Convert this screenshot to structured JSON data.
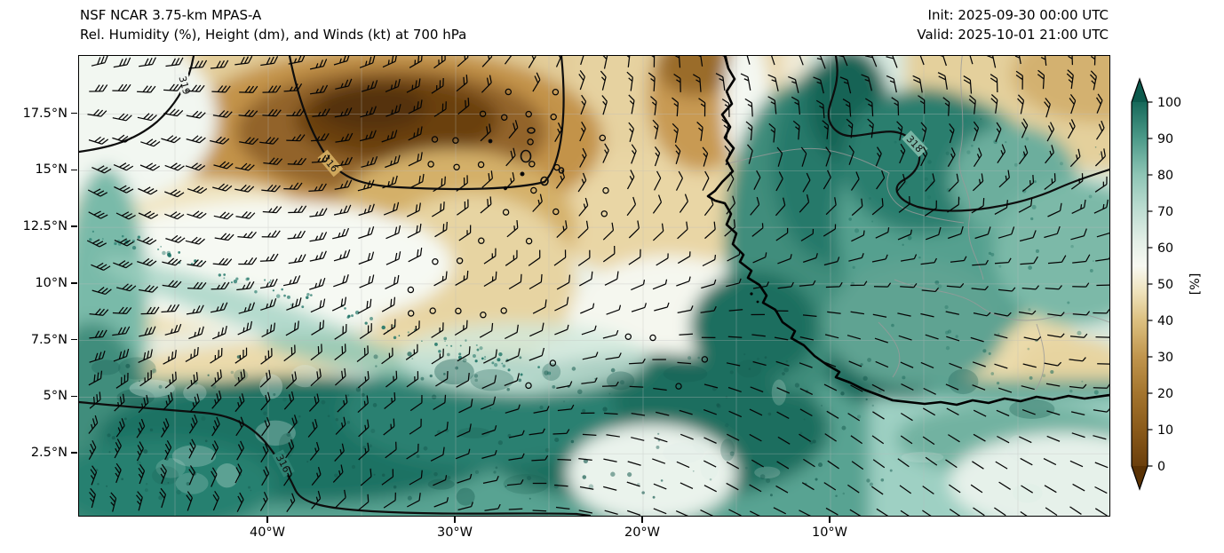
{
  "header": {
    "title_line1": "NSF NCAR 3.75-km MPAS-A",
    "title_line2": "Rel. Humidity (%), Height (dm), and Winds (kt) at 700 hPa",
    "init_label": "Init: 2025-09-30 00:00 UTC",
    "valid_label": "Valid: 2025-10-01 21:00 UTC"
  },
  "axes": {
    "lat_tick_labels": [
      "17.5°N",
      "15°N",
      "12.5°N",
      "10°N",
      "7.5°N",
      "5°N",
      "2.5°N"
    ],
    "lon_tick_labels": [
      "40°W",
      "30°W",
      "20°W",
      "10°W"
    ]
  },
  "colorbar": {
    "unit_label": "[%]",
    "tick_labels": [
      "0",
      "10",
      "20",
      "30",
      "40",
      "50",
      "60",
      "70",
      "80",
      "90",
      "100"
    ],
    "under_color": "#5a3204",
    "over_color": "#0d5a4d",
    "stops": [
      {
        "v": 0,
        "c": "#6b3f0c"
      },
      {
        "v": 10,
        "c": "#8a5a1a"
      },
      {
        "v": 20,
        "c": "#a4752e"
      },
      {
        "v": 30,
        "c": "#c0954d"
      },
      {
        "v": 40,
        "c": "#dcc080"
      },
      {
        "v": 48,
        "c": "#efe3bd"
      },
      {
        "v": 55,
        "c": "#f8f9f2"
      },
      {
        "v": 62,
        "c": "#e2eee6"
      },
      {
        "v": 70,
        "c": "#bfded3"
      },
      {
        "v": 80,
        "c": "#8ec5b5"
      },
      {
        "v": 90,
        "c": "#4c9a89"
      },
      {
        "v": 100,
        "c": "#17695a"
      }
    ]
  },
  "contour_labels": [
    "319",
    "316",
    "318",
    "316"
  ],
  "chart_data": {
    "type": "heatmap",
    "title": "NSF NCAR 3.75-km MPAS-A",
    "subtitle": "Rel. Humidity (%), Height (dm), and Winds (kt) at 700 hPa",
    "init_time": "2025-09-30 00:00 UTC",
    "valid_time": "2025-10-01 21:00 UTC",
    "x_tick_labels": [
      "40°W",
      "30°W",
      "20°W",
      "10°W"
    ],
    "y_tick_labels": [
      "17.5°N",
      "15°N",
      "12.5°N",
      "10°N",
      "7.5°N",
      "5°N",
      "2.5°N"
    ],
    "colorbar_label": "[%]",
    "colorbar_ticks": [
      0,
      10,
      20,
      30,
      40,
      50,
      60,
      70,
      80,
      90,
      100
    ],
    "colorbar_range": [
      0,
      100
    ],
    "colorbar_extend": "both",
    "labeled_height_contours_dm": [
      319,
      316,
      318,
      316
    ],
    "overlays": [
      "relative humidity shading (%)",
      "geopotential height contours (dm)",
      "wind barbs (kt)",
      "coastlines",
      "country borders"
    ],
    "legend_position": "right"
  }
}
